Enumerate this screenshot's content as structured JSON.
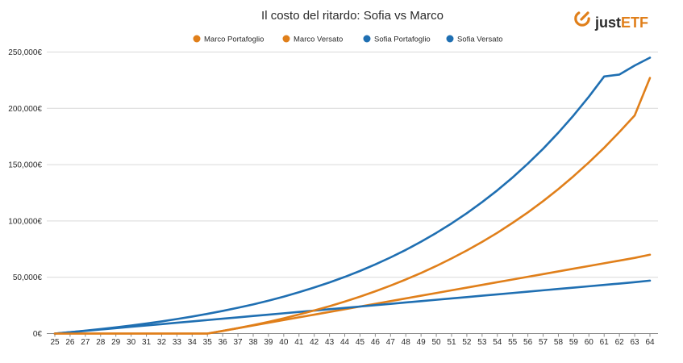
{
  "brand": {
    "logo_text_prefix": "just",
    "logo_text_suffix": "ETF",
    "logo_color": "#e07f1a",
    "text_color": "#2a2a2a"
  },
  "chart_data": {
    "type": "line",
    "title": "Il costo del ritardo: Sofia vs Marco",
    "xlabel": "",
    "ylabel": "",
    "x": [
      25,
      26,
      27,
      28,
      29,
      30,
      31,
      32,
      33,
      34,
      35,
      36,
      37,
      38,
      39,
      40,
      41,
      42,
      43,
      44,
      45,
      46,
      47,
      48,
      49,
      50,
      51,
      52,
      53,
      54,
      55,
      56,
      57,
      58,
      59,
      60,
      61,
      62,
      63,
      64
    ],
    "ylim": [
      0,
      250000
    ],
    "yticks": [
      0,
      50000,
      100000,
      150000,
      200000,
      250000
    ],
    "ytick_labels": [
      "0€",
      "50,000€",
      "100,000€",
      "150,000€",
      "200,000€",
      "250,000€"
    ],
    "grid": true,
    "legend_position": "top-center",
    "series": [
      {
        "name": "Marco Portafoglio",
        "color": "#e07f1a",
        "values": [
          0,
          0,
          0,
          0,
          0,
          0,
          0,
          0,
          0,
          0,
          0,
          2300,
          4800,
          7500,
          10400,
          13500,
          16900,
          20500,
          24300,
          28400,
          32800,
          37500,
          42600,
          48000,
          53800,
          60000,
          66700,
          73800,
          81400,
          89500,
          98300,
          107600,
          117600,
          128300,
          139800,
          152000,
          165000,
          179000,
          193700,
          227000
        ]
      },
      {
        "name": "Marco Versato",
        "color": "#e07f1a",
        "values": [
          0,
          0,
          0,
          0,
          0,
          0,
          0,
          0,
          0,
          0,
          0,
          2400,
          4800,
          7200,
          9600,
          12000,
          14400,
          16800,
          19200,
          21600,
          24000,
          26400,
          28800,
          31200,
          33600,
          36000,
          38400,
          40800,
          43200,
          45600,
          48000,
          50400,
          52800,
          55200,
          57600,
          60000,
          62400,
          64800,
          67200,
          70000
        ]
      },
      {
        "name": "Sofia Portafoglio",
        "color": "#1f6fb2",
        "values": [
          0,
          1250,
          2600,
          4000,
          5500,
          7100,
          8900,
          10800,
          12900,
          15100,
          17500,
          20100,
          22900,
          25900,
          29200,
          32800,
          36700,
          40900,
          45400,
          50300,
          55600,
          61400,
          67600,
          74300,
          81600,
          89400,
          97800,
          106900,
          116700,
          127200,
          138600,
          150900,
          164100,
          178400,
          193800,
          210400,
          228300,
          230000,
          238000,
          245000
        ]
      },
      {
        "name": "Sofia Versato",
        "color": "#1f6fb2",
        "values": [
          0,
          1200,
          2400,
          3600,
          4800,
          6000,
          7200,
          8400,
          9600,
          10800,
          12000,
          13200,
          14400,
          15600,
          16800,
          18000,
          19200,
          20400,
          21600,
          22800,
          24000,
          25200,
          26400,
          27600,
          28800,
          30000,
          31200,
          32400,
          33600,
          34800,
          36000,
          37200,
          38400,
          39600,
          40800,
          42000,
          43200,
          44400,
          45600,
          47000
        ]
      }
    ]
  }
}
